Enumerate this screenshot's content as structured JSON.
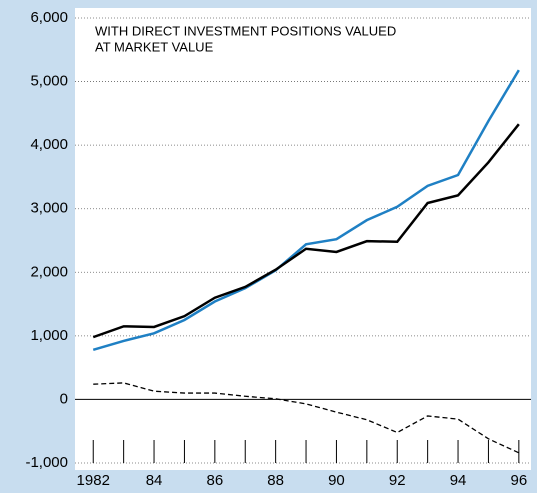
{
  "chart_data": {
    "type": "line",
    "annotation": [
      "WITH DIRECT INVESTMENT POSITIONS VALUED",
      "AT MARKET VALUE"
    ],
    "x": [
      1982,
      1983,
      1984,
      1985,
      1986,
      1987,
      1988,
      1989,
      1990,
      1991,
      1992,
      1993,
      1994,
      1995,
      1996
    ],
    "xlim": [
      1981.4,
      1996.4
    ],
    "xticks": [
      1982,
      {
        "value": 1984,
        "label": "84"
      },
      {
        "value": 1986,
        "label": "86"
      },
      {
        "value": 1988,
        "label": "88"
      },
      {
        "value": 1990,
        "label": "90"
      },
      {
        "value": 1992,
        "label": "92"
      },
      {
        "value": 1994,
        "label": "94"
      },
      {
        "value": 1996,
        "label": "96"
      }
    ],
    "ylim": [
      -1000,
      6000
    ],
    "yticks": [
      {
        "value": -1000,
        "label": "-1,000"
      },
      0,
      {
        "value": 1000,
        "label": "1,000"
      },
      {
        "value": 2000,
        "label": "2,000"
      },
      {
        "value": 3000,
        "label": "3,000"
      },
      {
        "value": 4000,
        "label": "4,000"
      },
      {
        "value": 5000,
        "label": "5,000"
      },
      {
        "value": 6000,
        "label": "6,000"
      }
    ],
    "grid": true,
    "series": [
      {
        "color": "#1f80c4",
        "style": "solid",
        "values": [
          780,
          920,
          1040,
          1250,
          1540,
          1750,
          2030,
          2440,
          2520,
          2820,
          3030,
          3360,
          3530,
          4380,
          5180
        ]
      },
      {
        "color": "#000000",
        "style": "solid",
        "values": [
          980,
          1150,
          1140,
          1310,
          1600,
          1770,
          2040,
          2370,
          2320,
          2490,
          2480,
          3090,
          3210,
          3730,
          4330
        ]
      },
      {
        "color": "#000000",
        "style": "dashed",
        "values": [
          240,
          260,
          130,
          100,
          100,
          50,
          10,
          -70,
          -200,
          -320,
          -520,
          -260,
          -310,
          -620,
          -840
        ]
      }
    ]
  }
}
